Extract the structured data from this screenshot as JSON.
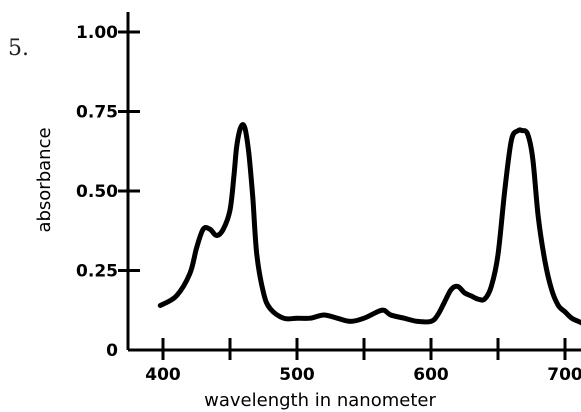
{
  "question_number": "5.",
  "chart_data": {
    "type": "line",
    "xlabel": "wavelength in nanometer",
    "ylabel": "absorbance",
    "xlim": [
      380,
      715
    ],
    "ylim": [
      0,
      1.13
    ],
    "x_ticks": [
      400,
      450,
      500,
      550,
      600,
      650,
      700
    ],
    "x_tick_labels": [
      "400",
      "",
      "500",
      "",
      "600",
      "",
      "700"
    ],
    "y_ticks": [
      0,
      0.25,
      0.5,
      0.75,
      1.0
    ],
    "y_tick_labels": [
      "0",
      "0.25",
      "0.50",
      "0.75",
      "1.00"
    ],
    "grid": false,
    "series_color": "#000000",
    "series": [
      {
        "x": [
          398,
          410,
          420,
          425,
          430,
          435,
          440,
          445,
          450,
          453,
          455,
          458,
          461,
          464,
          467,
          470,
          475,
          480,
          490,
          500,
          510,
          520,
          530,
          540,
          550,
          560,
          565,
          570,
          580,
          590,
          600,
          605,
          610,
          615,
          620,
          625,
          630,
          635,
          640,
          645,
          650,
          655,
          660,
          665,
          668,
          672,
          676,
          680,
          685,
          690,
          695,
          700,
          705,
          710,
          715
        ],
        "y": [
          0.14,
          0.17,
          0.24,
          0.32,
          0.38,
          0.38,
          0.36,
          0.38,
          0.44,
          0.55,
          0.64,
          0.7,
          0.7,
          0.62,
          0.48,
          0.3,
          0.18,
          0.13,
          0.1,
          0.1,
          0.1,
          0.11,
          0.1,
          0.09,
          0.1,
          0.12,
          0.125,
          0.11,
          0.1,
          0.09,
          0.09,
          0.11,
          0.15,
          0.19,
          0.2,
          0.18,
          0.17,
          0.16,
          0.16,
          0.2,
          0.3,
          0.5,
          0.66,
          0.69,
          0.69,
          0.68,
          0.6,
          0.42,
          0.28,
          0.19,
          0.14,
          0.12,
          0.1,
          0.09,
          0.08
        ]
      }
    ]
  }
}
